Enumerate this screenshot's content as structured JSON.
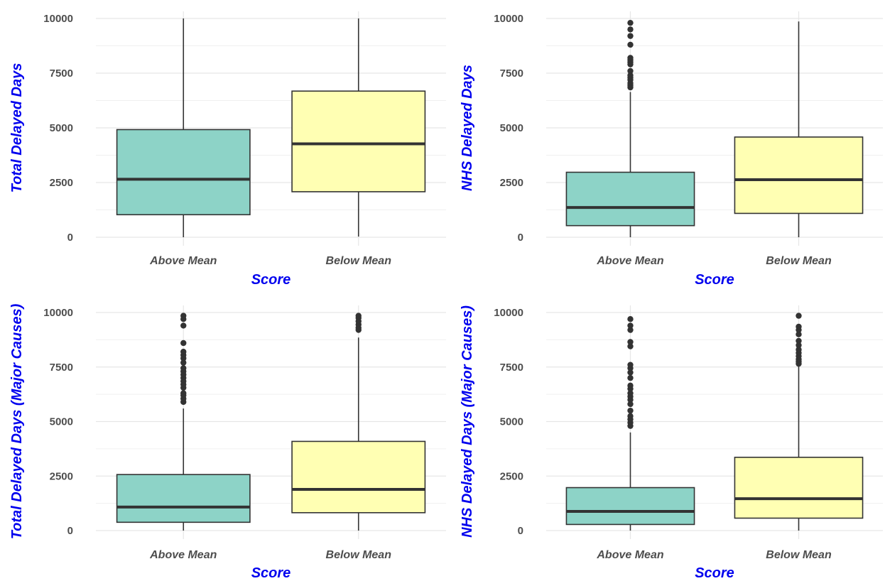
{
  "chart_data": [
    {
      "type": "box",
      "categories": [
        "Above Mean",
        "Below Mean"
      ],
      "xlabel": "Score",
      "ylabel": "Total Delayed Days",
      "ylim": [
        0,
        10000
      ],
      "yticks": [
        0,
        2500,
        5000,
        7500,
        10000
      ],
      "grid": true,
      "boxes": [
        {
          "category": "Above Mean",
          "fill": "#8DD3C7",
          "q1": 1030,
          "median": 2650,
          "q3": 4920,
          "whisker_low": 0,
          "whisker_high": 10000,
          "outliers": []
        },
        {
          "category": "Below Mean",
          "fill": "#FFFFB3",
          "q1": 2080,
          "median": 4270,
          "q3": 6680,
          "whisker_low": 30,
          "whisker_high": 10000,
          "outliers": []
        }
      ]
    },
    {
      "type": "box",
      "categories": [
        "Above Mean",
        "Below Mean"
      ],
      "xlabel": "Score",
      "ylabel": "NHS Delayed Days",
      "ylim": [
        0,
        10000
      ],
      "yticks": [
        0,
        2500,
        5000,
        7500,
        10000
      ],
      "grid": true,
      "boxes": [
        {
          "category": "Above Mean",
          "fill": "#8DD3C7",
          "q1": 530,
          "median": 1360,
          "q3": 2970,
          "whisker_low": 0,
          "whisker_high": 6640,
          "outliers": [
            6850,
            6950,
            7050,
            7200,
            7300,
            7400,
            7600,
            7900,
            8000,
            8100,
            8200,
            8800,
            9200,
            9500,
            9800
          ]
        },
        {
          "category": "Below Mean",
          "fill": "#FFFFB3",
          "q1": 1090,
          "median": 2630,
          "q3": 4580,
          "whisker_low": 0,
          "whisker_high": 9860,
          "outliers": []
        }
      ]
    },
    {
      "type": "box",
      "categories": [
        "Above Mean",
        "Below Mean"
      ],
      "xlabel": "Score",
      "ylabel": "Total Delayed Days (Major Causes)",
      "ylim": [
        0,
        10000
      ],
      "yticks": [
        0,
        2500,
        5000,
        7500,
        10000
      ],
      "grid": true,
      "boxes": [
        {
          "category": "Above Mean",
          "fill": "#8DD3C7",
          "q1": 380,
          "median": 1080,
          "q3": 2570,
          "whisker_low": 0,
          "whisker_high": 5600,
          "outliers": [
            5900,
            6050,
            6200,
            6300,
            6550,
            6700,
            6850,
            7000,
            7150,
            7300,
            7450,
            7700,
            7900,
            8050,
            8200,
            8600,
            9400,
            9700,
            9850
          ]
        },
        {
          "category": "Below Mean",
          "fill": "#FFFFB3",
          "q1": 820,
          "median": 1890,
          "q3": 4090,
          "whisker_low": 0,
          "whisker_high": 8850,
          "outliers": [
            9200,
            9300,
            9450,
            9600,
            9750,
            9850
          ]
        }
      ]
    },
    {
      "type": "box",
      "categories": [
        "Above Mean",
        "Below Mean"
      ],
      "xlabel": "Score",
      "ylabel": "NHS Delayed Days (Major Causes)",
      "ylim": [
        0,
        10000
      ],
      "yticks": [
        0,
        2500,
        5000,
        7500,
        10000
      ],
      "grid": true,
      "boxes": [
        {
          "category": "Above Mean",
          "fill": "#8DD3C7",
          "q1": 280,
          "median": 880,
          "q3": 1970,
          "whisker_low": 0,
          "whisker_high": 4500,
          "outliers": [
            4800,
            4950,
            5100,
            5250,
            5500,
            5800,
            6000,
            6150,
            6300,
            6500,
            6650,
            7000,
            7250,
            7450,
            7600,
            8450,
            8650,
            9200,
            9400,
            9700
          ]
        },
        {
          "category": "Below Mean",
          "fill": "#FFFFB3",
          "q1": 570,
          "median": 1460,
          "q3": 3360,
          "whisker_low": 0,
          "whisker_high": 7550,
          "outliers": [
            7650,
            7750,
            7850,
            8000,
            8150,
            8300,
            8500,
            8700,
            9000,
            9200,
            9350,
            9850
          ]
        }
      ]
    }
  ]
}
